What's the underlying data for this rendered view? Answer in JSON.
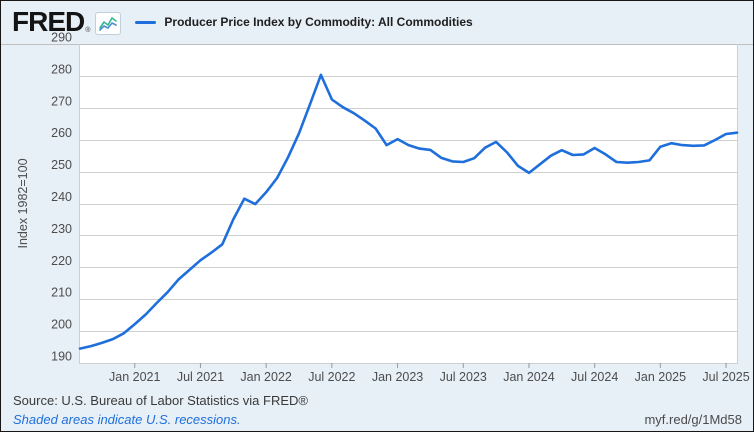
{
  "header": {
    "logo_text": "FRED",
    "logo_registered": "®",
    "legend": {
      "label": "Producer Price Index by Commodity: All Commodities",
      "swatch_color": "#1e6fdb"
    }
  },
  "footer": {
    "source": "Source: U.S. Bureau of Labor Statistics via FRED®",
    "recessions_note": "Shaded areas indicate U.S. recessions.",
    "short_url": "myf.red/g/1Md58"
  },
  "colors": {
    "background": "#e7eff7",
    "plot_background": "#ffffff",
    "line": "#1e6fdb",
    "gridline": "#cfcfcf",
    "divider": "#bfbfbf",
    "tick": "#999999",
    "axis_text": "#4d4d4d",
    "link": "#1e6fdb",
    "logo_icon_green": "#34b78f",
    "logo_icon_blue": "#4a8fd3"
  },
  "chart_data": {
    "type": "line",
    "title": "Producer Price Index by Commodity: All Commodities",
    "xlabel": "",
    "ylabel": "Index 1982=100",
    "ylim": [
      190,
      290
    ],
    "ytick_step": 10,
    "grid": true,
    "legend_position": "top",
    "x_tick_labels": [
      "Jan 2021",
      "Jul 2021",
      "Jan 2022",
      "Jul 2022",
      "Jan 2023",
      "Jul 2023",
      "Jan 2024",
      "Jul 2024",
      "Jan 2025",
      "Jul 2025"
    ],
    "x_tick_month_indices": [
      5,
      11,
      17,
      23,
      29,
      35,
      41,
      47,
      53,
      59
    ],
    "series": [
      {
        "name": "Producer Price Index by Commodity: All Commodities",
        "months": [
          "2020-08",
          "2020-09",
          "2020-10",
          "2020-11",
          "2020-12",
          "2021-01",
          "2021-02",
          "2021-03",
          "2021-04",
          "2021-05",
          "2021-06",
          "2021-07",
          "2021-08",
          "2021-09",
          "2021-10",
          "2021-11",
          "2021-12",
          "2022-01",
          "2022-02",
          "2022-03",
          "2022-04",
          "2022-05",
          "2022-06",
          "2022-07",
          "2022-08",
          "2022-09",
          "2022-10",
          "2022-11",
          "2022-12",
          "2023-01",
          "2023-02",
          "2023-03",
          "2023-04",
          "2023-05",
          "2023-06",
          "2023-07",
          "2023-08",
          "2023-09",
          "2023-10",
          "2023-11",
          "2023-12",
          "2024-01",
          "2024-02",
          "2024-03",
          "2024-04",
          "2024-05",
          "2024-06",
          "2024-07",
          "2024-08",
          "2024-09",
          "2024-10",
          "2024-11",
          "2024-12",
          "2025-01",
          "2025-02",
          "2025-03",
          "2025-04",
          "2025-05",
          "2025-06",
          "2025-07",
          "2025-08"
        ],
        "values": [
          194.5,
          195.3,
          196.3,
          197.5,
          199.3,
          202.2,
          205.2,
          208.8,
          212.2,
          216.2,
          219.2,
          222.2,
          224.6,
          227.2,
          235.0,
          241.5,
          239.8,
          243.5,
          248.0,
          254.5,
          262.0,
          271.0,
          280.3,
          272.6,
          270.2,
          268.3,
          266.0,
          263.5,
          258.3,
          260.2,
          258.3,
          257.2,
          256.8,
          254.3,
          253.2,
          253.0,
          254.2,
          257.5,
          259.3,
          256.0,
          251.8,
          249.6,
          252.3,
          255.0,
          256.7,
          255.2,
          255.4,
          257.4,
          255.4,
          253.0,
          252.8,
          253.0,
          253.5,
          257.8,
          258.9,
          258.3,
          258.1,
          258.2,
          259.9,
          261.8,
          262.2
        ]
      }
    ]
  }
}
